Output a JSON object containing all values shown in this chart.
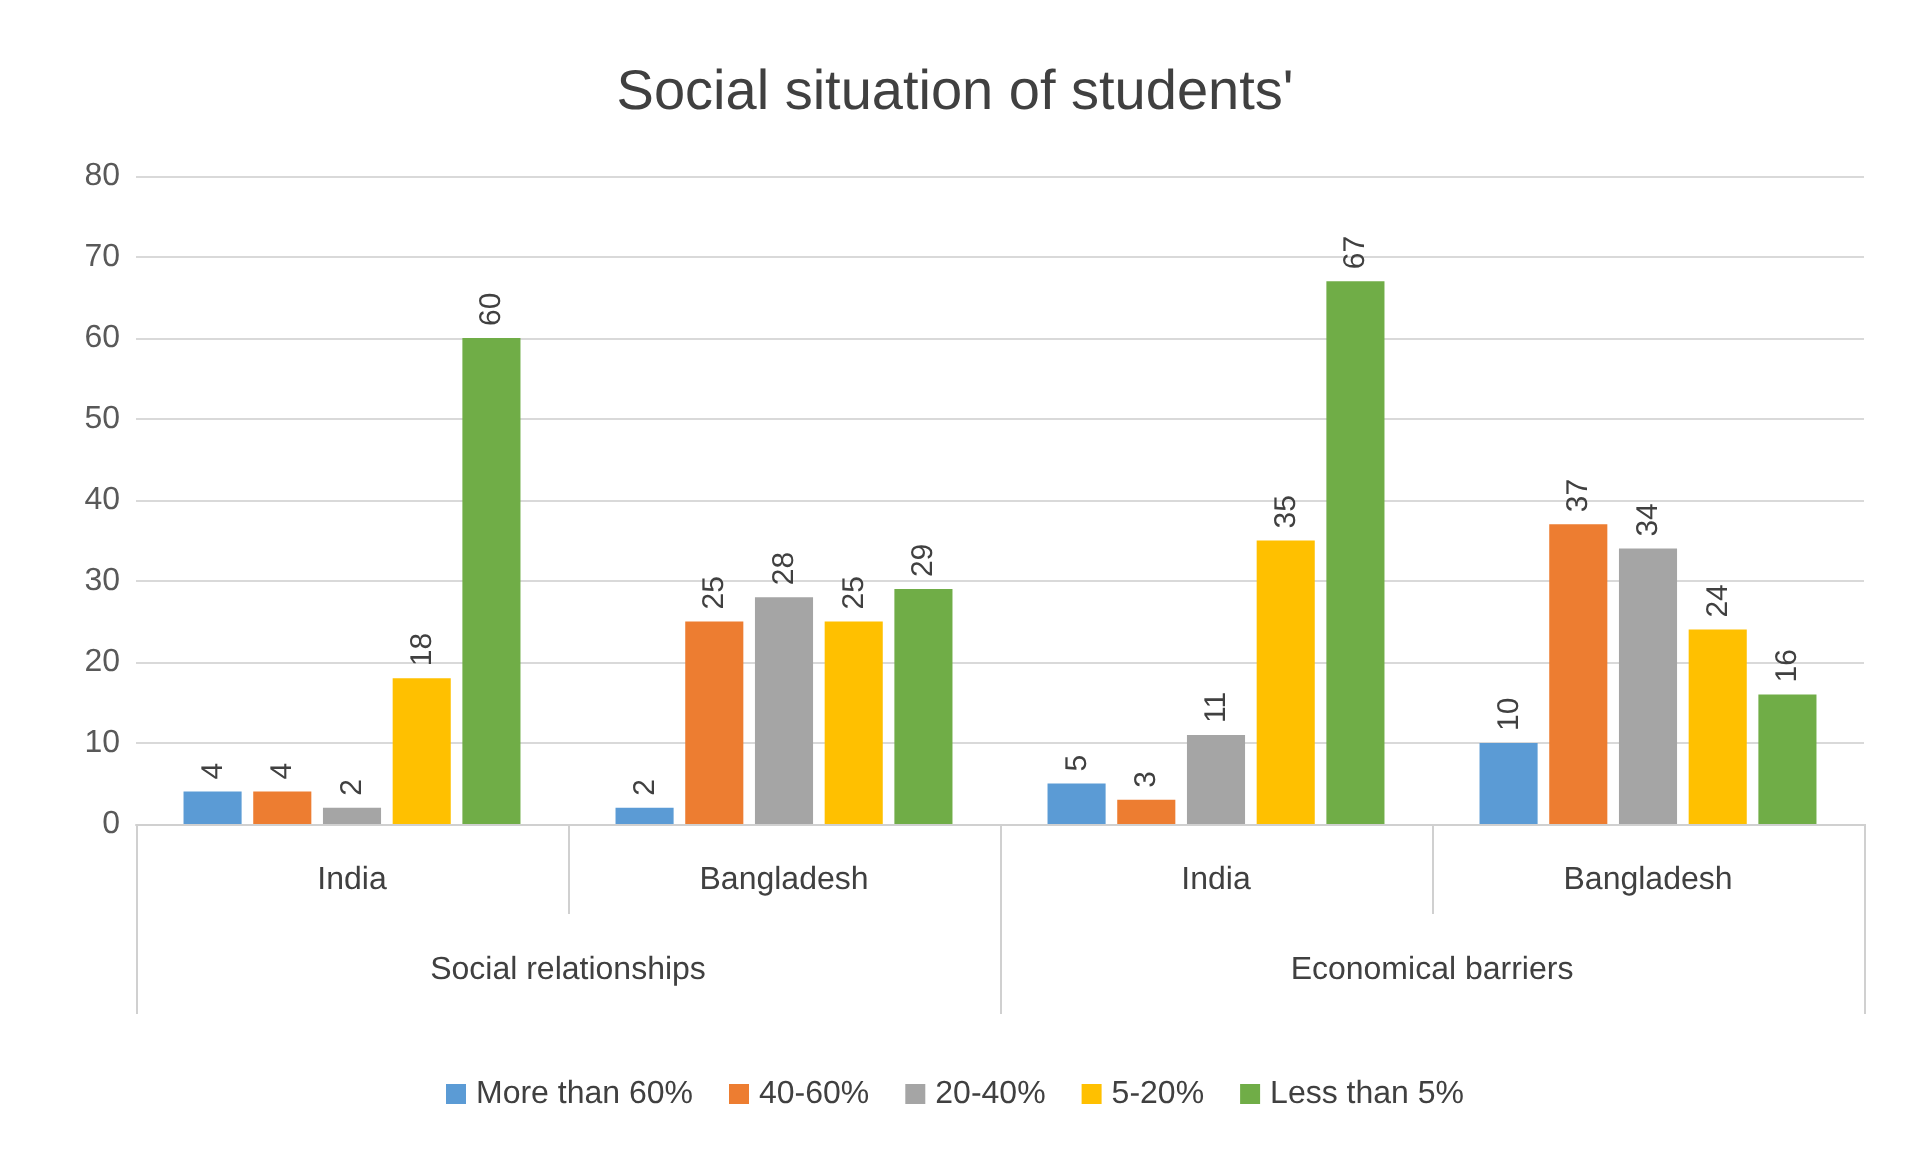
{
  "chart_data": {
    "type": "bar",
    "title": "Social situation of students'",
    "categories": [
      "India",
      "Bangladesh",
      "India",
      "Bangladesh"
    ],
    "annotations": [
      "Social relationships",
      "Economical barriers"
    ],
    "series": [
      {
        "name": "More than 60%",
        "color": "#5b9bd5",
        "values": [
          4,
          2,
          5,
          10
        ]
      },
      {
        "name": "40-60%",
        "color": "#ed7d31",
        "values": [
          4,
          25,
          3,
          37
        ]
      },
      {
        "name": "20-40%",
        "color": "#a5a5a5",
        "values": [
          2,
          28,
          11,
          34
        ]
      },
      {
        "name": "5-20%",
        "color": "#ffc000",
        "values": [
          18,
          25,
          35,
          24
        ]
      },
      {
        "name": "Less than 5%",
        "color": "#70ad47",
        "values": [
          60,
          29,
          67,
          16
        ]
      }
    ],
    "ylim": [
      0,
      80
    ],
    "yticks": [
      0,
      10,
      20,
      30,
      40,
      50,
      60,
      70,
      80
    ],
    "grid": "y",
    "legend": "bottom",
    "data_labels": true
  }
}
